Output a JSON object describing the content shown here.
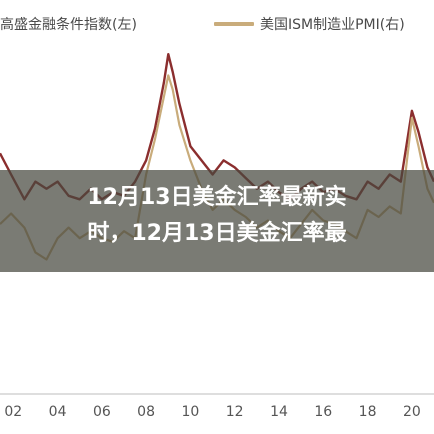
{
  "legend": {
    "left_series": "高盛金融条件指数(左)",
    "right_series": "美国ISM制造业PMI(右)"
  },
  "overlay": {
    "line1": "12月13日美金汇率最新实",
    "line2": "时，12月13日美金汇率最"
  },
  "colors": {
    "gs_fci": "#8b2e2e",
    "ism_pmi": "#c9ac7b",
    "overlay_band": "#46483e",
    "tick_text": "#555555"
  },
  "chart_data": {
    "type": "line",
    "x_tick_labels": [
      "02",
      "04",
      "06",
      "08",
      "10",
      "12",
      "14",
      "16",
      "18",
      "20"
    ],
    "x_range": [
      2001.4,
      2021.0
    ],
    "series": [
      {
        "name": "高盛金融条件指数(左)",
        "axis": "left",
        "color": "#8b2e2e",
        "x": [
          2001.4,
          2001.9,
          2002.5,
          2003.0,
          2003.5,
          2004.0,
          2004.5,
          2005.0,
          2005.5,
          2006.0,
          2006.5,
          2007.0,
          2007.5,
          2008.0,
          2008.4,
          2008.8,
          2009.0,
          2009.2,
          2009.5,
          2010.0,
          2010.5,
          2011.0,
          2011.5,
          2012.0,
          2012.5,
          2013.0,
          2013.5,
          2014.0,
          2014.5,
          2015.0,
          2015.5,
          2016.0,
          2016.5,
          2017.0,
          2017.5,
          2018.0,
          2018.5,
          2019.0,
          2019.5,
          2020.0,
          2020.3,
          2020.7,
          2021.0
        ],
        "y": [
          68,
          62,
          55,
          60,
          58,
          60,
          56,
          55,
          58,
          55,
          57,
          56,
          60,
          66,
          75,
          88,
          96,
          91,
          82,
          70,
          66,
          62,
          66,
          64,
          61,
          58,
          60,
          57,
          55,
          58,
          60,
          57,
          58,
          56,
          55,
          60,
          58,
          62,
          60,
          80,
          74,
          64,
          60
        ]
      },
      {
        "name": "美国ISM制造业PMI(右)",
        "axis": "right",
        "color": "#c9ac7b",
        "x": [
          2001.4,
          2001.9,
          2002.5,
          2003.0,
          2003.5,
          2004.0,
          2004.5,
          2005.0,
          2005.5,
          2006.0,
          2006.5,
          2007.0,
          2007.5,
          2008.0,
          2008.4,
          2008.8,
          2009.0,
          2009.2,
          2009.5,
          2010.0,
          2010.5,
          2011.0,
          2011.5,
          2012.0,
          2012.5,
          2013.0,
          2013.5,
          2014.0,
          2014.5,
          2015.0,
          2015.5,
          2016.0,
          2016.5,
          2017.0,
          2017.5,
          2018.0,
          2018.5,
          2019.0,
          2019.5,
          2020.0,
          2020.3,
          2020.7,
          2021.0
        ],
        "y": [
          48,
          51,
          47,
          40,
          38,
          44,
          47,
          44,
          46,
          44,
          43,
          46,
          44,
          62,
          72,
          84,
          90,
          86,
          76,
          66,
          58,
          52,
          55,
          52,
          50,
          47,
          49,
          46,
          44,
          48,
          52,
          49,
          48,
          46,
          44,
          52,
          50,
          53,
          51,
          78,
          70,
          58,
          54
        ]
      }
    ],
    "grid": false,
    "legend_position": "top"
  }
}
